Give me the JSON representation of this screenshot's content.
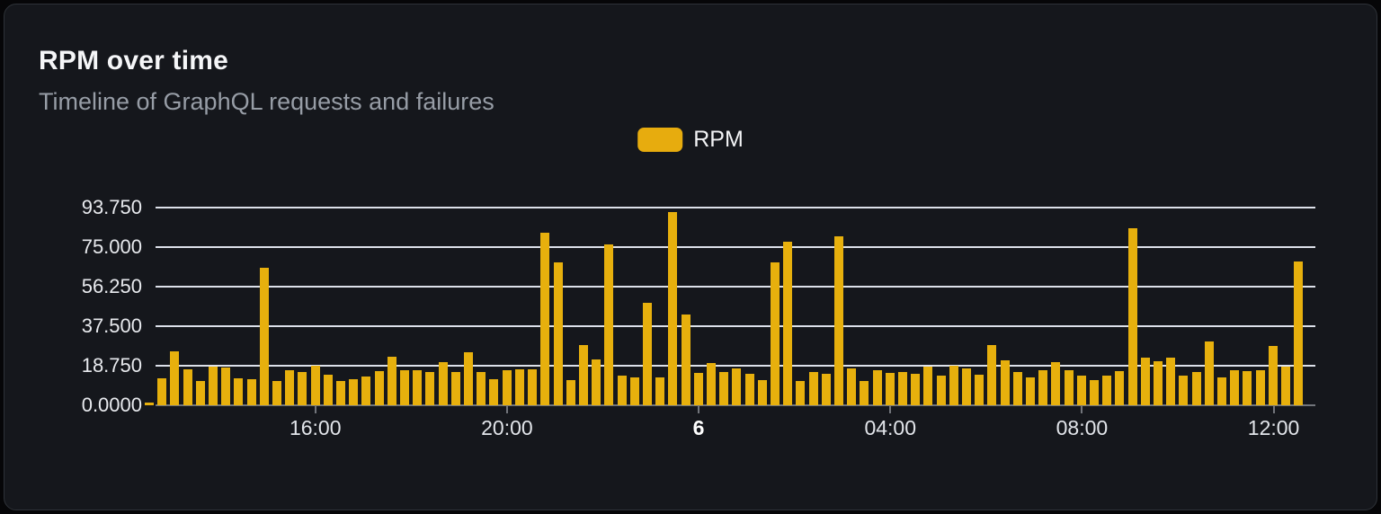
{
  "header": {
    "title": "RPM over time",
    "subtitle": "Timeline of GraphQL requests and failures"
  },
  "legend": {
    "label": "RPM",
    "swatch_color": "#e7ac0e"
  },
  "colors": {
    "bar": "#e7b00d",
    "card_background": "#15171c",
    "card_border": "#2e3238",
    "gridline": "#dde1ea",
    "axis": "#72757b",
    "title_text": "#f5f6f8",
    "subtitle_text": "#979da6"
  },
  "chart_data": {
    "type": "bar",
    "title": "RPM over time",
    "subtitle": "Timeline of GraphQL requests and failures",
    "xlabel": "",
    "ylabel": "",
    "ylim": [
      0,
      93.75
    ],
    "grid": true,
    "legend_position": "top-center",
    "y_ticks": [
      {
        "label": "0.0000",
        "value": 0
      },
      {
        "label": "18.750",
        "value": 18.75
      },
      {
        "label": "37.500",
        "value": 37.5
      },
      {
        "label": "56.250",
        "value": 56.25
      },
      {
        "label": "75.000",
        "value": 75
      },
      {
        "label": "93.750",
        "value": 93.75
      }
    ],
    "x_ticks": [
      {
        "label": "16:00",
        "index": 13,
        "emphasis": false
      },
      {
        "label": "20:00",
        "index": 28,
        "emphasis": false
      },
      {
        "label": "6",
        "index": 43,
        "emphasis": true
      },
      {
        "label": "04:00",
        "index": 58,
        "emphasis": false
      },
      {
        "label": "08:00",
        "index": 73,
        "emphasis": false
      },
      {
        "label": "12:00",
        "index": 88,
        "emphasis": false
      }
    ],
    "series": [
      {
        "name": "RPM",
        "values": [
          1.2,
          12.8,
          25.6,
          17.0,
          11.4,
          18.2,
          17.9,
          12.9,
          12.2,
          65.1,
          11.5,
          16.8,
          15.6,
          18.6,
          14.6,
          11.5,
          12.2,
          13.6,
          16.1,
          23.2,
          16.5,
          16.8,
          15.6,
          20.3,
          15.9,
          25.3,
          15.9,
          12.5,
          16.8,
          17.0,
          17.0,
          82.0,
          67.8,
          12.1,
          28.4,
          21.7,
          76.4,
          14.2,
          13.1,
          48.6,
          13.2,
          91.6,
          42.9,
          15.2,
          20.2,
          15.6,
          17.3,
          14.9,
          12.1,
          67.8,
          77.7,
          11.6,
          15.6,
          14.9,
          80.0,
          17.5,
          11.6,
          16.6,
          15.2,
          15.9,
          14.9,
          18.2,
          13.9,
          18.9,
          17.5,
          14.5,
          28.4,
          21.3,
          15.6,
          13.2,
          16.8,
          20.3,
          16.8,
          13.9,
          11.8,
          14.2,
          16.3,
          83.8,
          22.7,
          20.9,
          22.7,
          14.2,
          15.6,
          30.1,
          13.1,
          16.8,
          16.1,
          16.6,
          28.0,
          18.2,
          68.2
        ]
      }
    ]
  }
}
